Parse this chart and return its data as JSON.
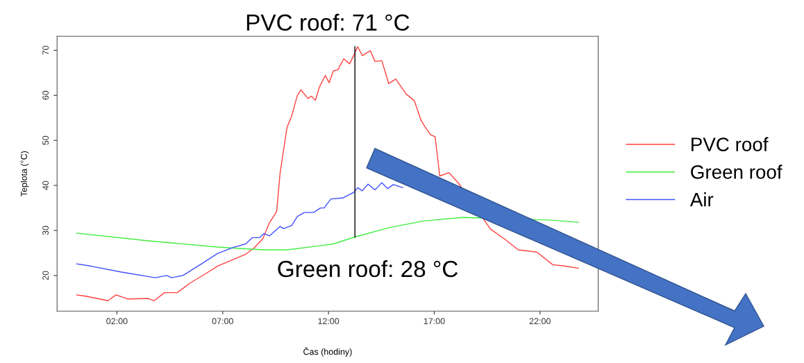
{
  "chart_data": {
    "type": "line",
    "title": "PVC roof: 71 °C",
    "xlabel": "Čas (hodiny)",
    "ylabel": "Teplota (°C)",
    "annotations": [
      "Green roof: 28 °C"
    ],
    "xlim": [
      -0.83,
      24.75
    ],
    "ylim": [
      12.1,
      73.1
    ],
    "xticks": [
      {
        "value": 2,
        "label": "02:00"
      },
      {
        "value": 7,
        "label": "07:00"
      },
      {
        "value": 12,
        "label": "12:00"
      },
      {
        "value": 17,
        "label": "17:00"
      },
      {
        "value": 22,
        "label": "22:00"
      }
    ],
    "yticks": [
      20,
      30,
      40,
      50,
      60,
      70
    ],
    "grid": false,
    "legend": "right",
    "line_style": "solid",
    "marker": "none",
    "series": [
      {
        "name": "PVC roof",
        "color": "#ff4040",
        "x": [
          0.1,
          0.53,
          1.57,
          1.96,
          2.5,
          3.49,
          3.76,
          4.25,
          4.85,
          5.45,
          6.33,
          6.76,
          8.08,
          8.5,
          8.9,
          9.22,
          9.55,
          9.71,
          10.04,
          10.26,
          10.53,
          10.7,
          11.03,
          11.2,
          11.38,
          11.57,
          11.85,
          12.03,
          12.23,
          12.45,
          12.72,
          13.0,
          13.21,
          13.38,
          13.6,
          13.98,
          14.2,
          14.52,
          14.85,
          15.18,
          15.67,
          16.06,
          16.38,
          16.55,
          16.82,
          17.04,
          17.26,
          17.7,
          18.13,
          19.66,
          20.3,
          20.97,
          21.85,
          22.6,
          23.16,
          23.82
        ],
        "values": [
          15.7,
          15.4,
          14.4,
          15.7,
          14.8,
          14.9,
          14.4,
          16.2,
          16.2,
          18.3,
          20.8,
          22.1,
          24.7,
          26.2,
          28.2,
          31.8,
          34.2,
          42.6,
          52.9,
          55.4,
          60.0,
          61.2,
          59.3,
          59.8,
          58.9,
          61.8,
          64.4,
          62.8,
          65.4,
          65.7,
          68.1,
          67.0,
          69.0,
          70.8,
          68.8,
          69.9,
          67.5,
          67.7,
          62.6,
          63.6,
          60.3,
          58.8,
          54.4,
          53.1,
          51.3,
          50.8,
          42.1,
          42.8,
          40.6,
          30.3,
          28.2,
          25.7,
          25.2,
          22.4,
          22.1,
          21.6
        ]
      },
      {
        "name": "Green roof",
        "color": "#40ee40",
        "x": [
          0.1,
          3.49,
          6.76,
          8.95,
          10.04,
          11.57,
          12.23,
          13.21,
          14.85,
          16.49,
          18.35,
          22.5,
          23.82
        ],
        "values": [
          29.4,
          27.7,
          26.3,
          25.7,
          25.7,
          26.6,
          27.0,
          28.5,
          30.6,
          32.1,
          32.9,
          32.3,
          31.8
        ]
      },
      {
        "name": "Air",
        "color": "#4050ff",
        "x": [
          0.1,
          0.75,
          2.17,
          3.81,
          4.36,
          4.58,
          5.12,
          6.0,
          6.76,
          7.53,
          8.08,
          8.4,
          8.73,
          8.95,
          9.22,
          9.71,
          9.88,
          10.26,
          10.53,
          10.86,
          11.3,
          11.62,
          11.8,
          11.95,
          12.12,
          12.67,
          13.21,
          13.38,
          13.6,
          13.87,
          14.2,
          14.52,
          14.8,
          15.07,
          15.51
        ],
        "values": [
          22.6,
          22.1,
          20.8,
          19.5,
          20.0,
          19.5,
          20.0,
          22.6,
          24.9,
          26.3,
          27.0,
          28.4,
          28.4,
          29.3,
          28.8,
          30.9,
          30.4,
          31.1,
          33.1,
          34.0,
          34.0,
          35.0,
          35.0,
          36.0,
          37.0,
          37.2,
          38.5,
          39.5,
          38.8,
          40.3,
          39.0,
          40.6,
          39.3,
          40.2,
          39.5
        ]
      },
      {
        "color": "#000000",
        "x": [
          13.25,
          13.25
        ],
        "values": [
          28.5,
          70.8
        ]
      }
    ]
  }
}
